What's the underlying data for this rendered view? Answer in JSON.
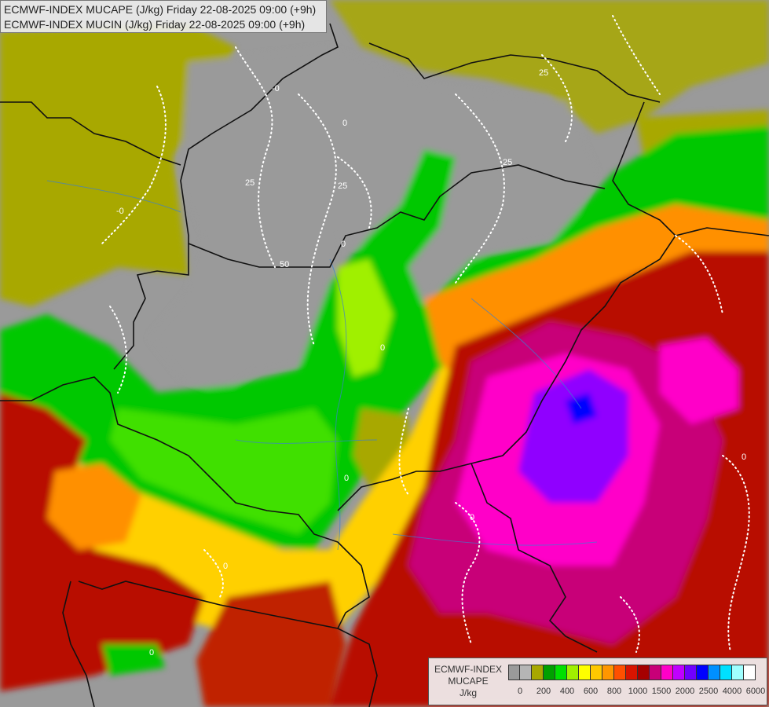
{
  "title": {
    "line1": "ECMWF-INDEX MUCAPE (J/kg) Friday 22-08-2025 09:00 (+9h)",
    "line2": "ECMWF-INDEX MUCIN (J/kg) Friday 22-08-2025 09:00 (+9h)"
  },
  "legend": {
    "name_line1": "ECMWF-INDEX",
    "name_line2": "MUCAPE",
    "unit": "J/kg",
    "swatch_colors": [
      "#9a9a9a",
      "#b5b5b5",
      "#a8a800",
      "#00a000",
      "#00e000",
      "#a0f000",
      "#ffff00",
      "#ffc800",
      "#ff9600",
      "#ff5000",
      "#d81400",
      "#a50000",
      "#c80078",
      "#ff00c8",
      "#c000ff",
      "#7000ff",
      "#0000ff",
      "#0090ff",
      "#00e0ff",
      "#a0ffff",
      "#ffffff"
    ],
    "tick_labels": [
      "0",
      "200",
      "400",
      "600",
      "800",
      "1000",
      "1500",
      "2000",
      "2500",
      "4000",
      "6000"
    ]
  },
  "mucin_contours": [
    "-0",
    "-0",
    "25",
    "0",
    "25",
    "50",
    "0",
    "0",
    "0",
    "0",
    "0",
    "0",
    "25",
    "25",
    "0"
  ]
}
